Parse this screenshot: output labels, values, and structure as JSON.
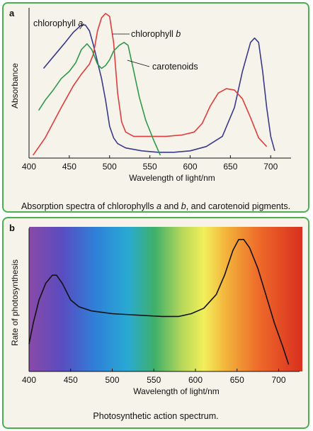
{
  "chart_data": [
    {
      "type": "line",
      "panel_label": "a",
      "xlabel": "Wavelength of light/nm",
      "ylabel": "Absorbance",
      "xlim": [
        400,
        720
      ],
      "ylim": [
        0,
        1
      ],
      "x_ticks": [
        400,
        450,
        500,
        550,
        600,
        650,
        700
      ],
      "grid": false,
      "series": [
        {
          "name": "chlorophyll a",
          "color": "#3a3a8c",
          "points": [
            [
              418,
              0.62
            ],
            [
              430,
              0.7
            ],
            [
              445,
              0.8
            ],
            [
              455,
              0.87
            ],
            [
              465,
              0.92
            ],
            [
              470,
              0.92
            ],
            [
              475,
              0.88
            ],
            [
              480,
              0.78
            ],
            [
              490,
              0.55
            ],
            [
              495,
              0.4
            ],
            [
              500,
              0.22
            ],
            [
              505,
              0.14
            ],
            [
              510,
              0.1
            ],
            [
              520,
              0.07
            ],
            [
              540,
              0.05
            ],
            [
              560,
              0.04
            ],
            [
              580,
              0.04
            ],
            [
              600,
              0.05
            ],
            [
              620,
              0.08
            ],
            [
              640,
              0.15
            ],
            [
              655,
              0.35
            ],
            [
              665,
              0.6
            ],
            [
              675,
              0.8
            ],
            [
              680,
              0.83
            ],
            [
              685,
              0.8
            ],
            [
              690,
              0.6
            ],
            [
              695,
              0.35
            ],
            [
              700,
              0.15
            ],
            [
              705,
              0.05
            ]
          ]
        },
        {
          "name": "chlorophyll b",
          "color": "#e03c3c",
          "points": [
            [
              405,
              0.02
            ],
            [
              420,
              0.14
            ],
            [
              440,
              0.35
            ],
            [
              455,
              0.5
            ],
            [
              465,
              0.58
            ],
            [
              475,
              0.65
            ],
            [
              480,
              0.72
            ],
            [
              485,
              0.88
            ],
            [
              490,
              0.97
            ],
            [
              495,
              1.0
            ],
            [
              500,
              0.98
            ],
            [
              505,
              0.8
            ],
            [
              510,
              0.45
            ],
            [
              515,
              0.25
            ],
            [
              520,
              0.18
            ],
            [
              530,
              0.15
            ],
            [
              550,
              0.15
            ],
            [
              570,
              0.15
            ],
            [
              590,
              0.16
            ],
            [
              605,
              0.18
            ],
            [
              615,
              0.24
            ],
            [
              625,
              0.36
            ],
            [
              635,
              0.45
            ],
            [
              645,
              0.48
            ],
            [
              655,
              0.47
            ],
            [
              665,
              0.41
            ],
            [
              675,
              0.28
            ],
            [
              685,
              0.14
            ],
            [
              695,
              0.08
            ]
          ]
        },
        {
          "name": "carotenoids",
          "color": "#2f9a4a",
          "points": [
            [
              412,
              0.33
            ],
            [
              420,
              0.4
            ],
            [
              430,
              0.47
            ],
            [
              440,
              0.55
            ],
            [
              450,
              0.6
            ],
            [
              458,
              0.66
            ],
            [
              465,
              0.75
            ],
            [
              472,
              0.79
            ],
            [
              478,
              0.75
            ],
            [
              485,
              0.65
            ],
            [
              490,
              0.62
            ],
            [
              495,
              0.64
            ],
            [
              500,
              0.68
            ],
            [
              505,
              0.74
            ],
            [
              512,
              0.78
            ],
            [
              518,
              0.8
            ],
            [
              523,
              0.78
            ],
            [
              530,
              0.6
            ],
            [
              537,
              0.42
            ],
            [
              545,
              0.26
            ],
            [
              555,
              0.12
            ],
            [
              563,
              0.02
            ]
          ]
        }
      ],
      "annotations": [
        {
          "text": "chlorophyll ",
          "italic": "a"
        },
        {
          "text": "chlorophyll ",
          "italic": "b"
        },
        {
          "text": "carotenoids"
        }
      ],
      "caption": {
        "pre": "Absorption spectra of chlorophylls ",
        "a": "a",
        "mid": " and ",
        "b": "b",
        "post": ", and carotenoid pigments."
      }
    },
    {
      "type": "line",
      "panel_label": "b",
      "xlabel": "Wavelength of light/nm",
      "ylabel": "Rate of photosynthesis",
      "xlim": [
        400,
        720
      ],
      "ylim": [
        0,
        1
      ],
      "x_ticks": [
        400,
        450,
        500,
        550,
        600,
        650,
        700
      ],
      "grid": false,
      "background": "visible spectrum gradient",
      "series": [
        {
          "color": "#111111",
          "points": [
            [
              400,
              0.2
            ],
            [
              405,
              0.35
            ],
            [
              412,
              0.52
            ],
            [
              420,
              0.64
            ],
            [
              428,
              0.7
            ],
            [
              433,
              0.7
            ],
            [
              440,
              0.64
            ],
            [
              450,
              0.52
            ],
            [
              460,
              0.47
            ],
            [
              475,
              0.44
            ],
            [
              500,
              0.42
            ],
            [
              530,
              0.41
            ],
            [
              560,
              0.4
            ],
            [
              580,
              0.4
            ],
            [
              595,
              0.42
            ],
            [
              610,
              0.46
            ],
            [
              625,
              0.56
            ],
            [
              635,
              0.7
            ],
            [
              645,
              0.88
            ],
            [
              652,
              0.96
            ],
            [
              658,
              0.96
            ],
            [
              665,
              0.9
            ],
            [
              675,
              0.75
            ],
            [
              685,
              0.55
            ],
            [
              695,
              0.35
            ],
            [
              705,
              0.18
            ],
            [
              712,
              0.05
            ]
          ]
        }
      ],
      "caption": "Photosynthetic action spectrum."
    }
  ]
}
